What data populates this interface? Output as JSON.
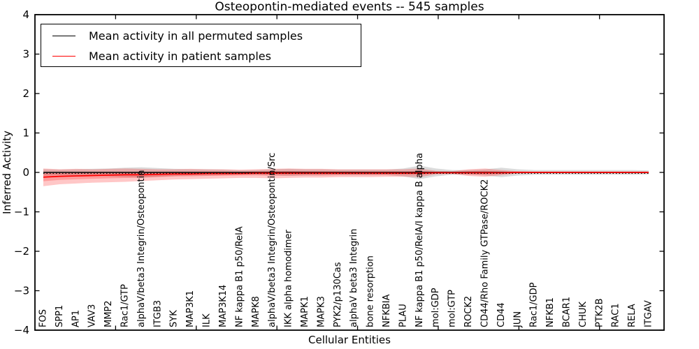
{
  "figure": {
    "title": "Osteopontin-mediated events -- 545 samples",
    "xlabel": "Cellular Entities",
    "ylabel": "Inferred Activity",
    "legend": [
      {
        "label": "Mean activity in all permuted samples",
        "color": "#000000"
      },
      {
        "label": "Mean activity in patient samples",
        "color": "#ff0000"
      }
    ]
  },
  "chart_data": {
    "type": "line",
    "title": "Osteopontin-mediated events -- 545 samples",
    "xlabel": "Cellular Entities",
    "ylabel": "Inferred Activity",
    "ylim": [
      -4,
      4
    ],
    "xlim": [
      0,
      39
    ],
    "yticks": [
      4,
      3,
      2,
      1,
      0,
      -1,
      -2,
      -3,
      -4
    ],
    "xticks_numeric": [
      5,
      10,
      15,
      20,
      25,
      30,
      35
    ],
    "grid": false,
    "legend_position": "upper left",
    "zero_line": 0,
    "categories": [
      "FOS",
      "SPP1",
      "AP1",
      "VAV3",
      "MMP2",
      "Rac1/GTP",
      "alphaV/beta3 Integrin/Osteopontin",
      "ITGB3",
      "SYK",
      "MAP3K1",
      "ILK",
      "MAP3K14",
      "NF kappa B1 p50/RelA",
      "MAPK8",
      "alphaV/beta3 Integrin/Osteopontin/Src",
      "IKK alpha homodimer",
      "MAPK1",
      "MAPK3",
      "PYK2/p130Cas",
      "alphaV beta3 Integrin",
      "bone resorption",
      "NFKBIA",
      "PLAU",
      "NF kappa B1 p50/RelA/I kappa B alpha",
      "mol:GDP",
      "mol:GTP",
      "ROCK2",
      "CD44/Rho Family GTPase/ROCK2",
      "CD44",
      "JUN",
      "Rac1/GDP",
      "NFKB1",
      "BCAR1",
      "CHUK",
      "PTK2B",
      "RAC1",
      "RELA",
      "ITGAV"
    ],
    "series": [
      {
        "name": "Mean activity in all permuted samples",
        "color": "#000000",
        "band_color": "rgba(0,0,0,0.14)",
        "values": [
          0,
          0,
          0,
          0,
          0,
          0,
          0,
          0,
          0,
          0,
          0,
          0,
          0,
          0,
          0,
          0,
          0,
          0,
          0,
          0,
          0,
          0,
          0,
          0,
          0,
          0,
          0,
          0,
          0,
          0,
          0,
          0,
          0,
          0,
          0,
          0,
          0,
          0
        ],
        "band_upper": [
          0.08,
          0.07,
          0.08,
          0.09,
          0.1,
          0.12,
          0.13,
          0.11,
          0.09,
          0.08,
          0.08,
          0.07,
          0.05,
          0.06,
          0.08,
          0.09,
          0.08,
          0.08,
          0.07,
          0.07,
          0.07,
          0.07,
          0.1,
          0.17,
          0.1,
          0.06,
          0.06,
          0.08,
          0.12,
          0.08,
          0.06,
          0.06,
          0.06,
          0.06,
          0.06,
          0.06,
          0.06,
          0.05
        ],
        "band_lower": [
          -0.08,
          -0.07,
          -0.08,
          -0.09,
          -0.1,
          -0.12,
          -0.13,
          -0.11,
          -0.09,
          -0.08,
          -0.08,
          -0.07,
          -0.05,
          -0.06,
          -0.08,
          -0.09,
          -0.08,
          -0.08,
          -0.07,
          -0.07,
          -0.07,
          -0.07,
          -0.1,
          -0.17,
          -0.1,
          -0.06,
          -0.06,
          -0.08,
          -0.12,
          -0.08,
          -0.06,
          -0.06,
          -0.06,
          -0.06,
          -0.06,
          -0.06,
          -0.06,
          -0.05
        ]
      },
      {
        "name": "Mean activity in patient samples",
        "color": "#ff0000",
        "band_color": "rgba(255,0,0,0.22)",
        "values": [
          -0.12,
          -0.1,
          -0.09,
          -0.08,
          -0.07,
          -0.06,
          -0.06,
          -0.05,
          -0.04,
          -0.04,
          -0.03,
          -0.03,
          -0.03,
          -0.02,
          -0.02,
          -0.02,
          -0.02,
          -0.02,
          -0.02,
          -0.02,
          -0.02,
          -0.02,
          -0.02,
          -0.02,
          -0.01,
          -0.01,
          -0.01,
          -0.01,
          -0.01,
          0,
          0,
          0,
          0,
          0,
          0,
          0,
          0,
          0
        ],
        "band_upper": [
          0.1,
          0.08,
          0.09,
          0.08,
          0.09,
          0.1,
          0.09,
          0.08,
          0.08,
          0.09,
          0.08,
          0.08,
          0.07,
          0.08,
          0.09,
          0.1,
          0.09,
          0.09,
          0.08,
          0.08,
          0.08,
          0.08,
          0.08,
          0.1,
          0.04,
          0.03,
          0.08,
          0.1,
          0.06,
          0.03,
          0.02,
          0.02,
          0.02,
          0.02,
          0.02,
          0.02,
          0.02,
          0.02
        ],
        "band_lower": [
          -0.35,
          -0.3,
          -0.28,
          -0.26,
          -0.25,
          -0.24,
          -0.22,
          -0.2,
          -0.18,
          -0.17,
          -0.16,
          -0.15,
          -0.14,
          -0.14,
          -0.15,
          -0.14,
          -0.13,
          -0.13,
          -0.12,
          -0.12,
          -0.12,
          -0.11,
          -0.11,
          -0.12,
          -0.05,
          -0.04,
          -0.09,
          -0.11,
          -0.07,
          -0.03,
          -0.02,
          -0.02,
          -0.02,
          -0.02,
          -0.02,
          -0.02,
          -0.02,
          -0.02
        ]
      }
    ]
  }
}
